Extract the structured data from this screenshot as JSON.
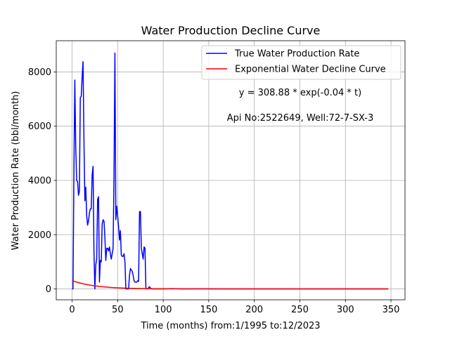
{
  "chart_data": {
    "type": "line",
    "title": "Water Production Decline Curve",
    "xlabel": "Time (months) from:1/1995 to:12/2023",
    "ylabel": "Water Production Rate (bbl/month)",
    "xlim": [
      -17.4,
      365.4
    ],
    "ylim": [
      -400,
      9150
    ],
    "xticks": [
      0,
      50,
      100,
      150,
      200,
      250,
      300,
      350
    ],
    "yticks": [
      0,
      2000,
      4000,
      6000,
      8000
    ],
    "grid": true,
    "legend_position": "upper right",
    "annotations": [
      "y = 308.88 * exp(-0.04 * t)",
      "Api No:2522649, Well:72-7-SX-3"
    ],
    "series": [
      {
        "name": "True Water Production Rate",
        "color": "#0000ff",
        "x": [
          0,
          1,
          2,
          3,
          4,
          5,
          6,
          7,
          8,
          9,
          10,
          11,
          12,
          13,
          14,
          15,
          16,
          17,
          18,
          19,
          20,
          21,
          22,
          23,
          24,
          25,
          26,
          27,
          28,
          29,
          30,
          31,
          32,
          33,
          34,
          35,
          36,
          37,
          38,
          39,
          40,
          41,
          42,
          43,
          44,
          45,
          46,
          47,
          48,
          49,
          50,
          51,
          52,
          53,
          54,
          55,
          56,
          57,
          58,
          59,
          60,
          61,
          62,
          63,
          64,
          65,
          66,
          67,
          68,
          69,
          70,
          71,
          72,
          73,
          74,
          75,
          76,
          77,
          78,
          79,
          80,
          81,
          82,
          83,
          84,
          85,
          86,
          87,
          88,
          89,
          90,
          91,
          95,
          100,
          110,
          120,
          140,
          160,
          180,
          200,
          220,
          240,
          260,
          280,
          300,
          320,
          340,
          347
        ],
        "y": [
          0,
          0,
          4400,
          7700,
          5200,
          4000,
          3950,
          3450,
          3600,
          7050,
          7100,
          7800,
          8380,
          5500,
          3250,
          3750,
          2700,
          2350,
          2500,
          2800,
          2950,
          2950,
          4200,
          4520,
          1350,
          0,
          900,
          1100,
          3300,
          3400,
          250,
          1050,
          1000,
          2400,
          2550,
          2500,
          1900,
          1050,
          1500,
          1500,
          1400,
          1550,
          1300,
          1100,
          1300,
          1500,
          4200,
          8700,
          2550,
          3050,
          2700,
          2300,
          1800,
          2150,
          1250,
          1200,
          1200,
          1300,
          1000,
          0,
          0,
          0,
          0,
          500,
          750,
          700,
          650,
          500,
          300,
          250,
          250,
          250,
          300,
          280,
          2850,
          2850,
          1500,
          1300,
          1100,
          1550,
          1500,
          0,
          0,
          0,
          50,
          80,
          30,
          10,
          0,
          0,
          0,
          0,
          0,
          0,
          10,
          0,
          5,
          0,
          0,
          0,
          0,
          0,
          0,
          0,
          0,
          0,
          0,
          0
        ]
      },
      {
        "name": "Exponential Water Decline Curve",
        "color": "#ff0000",
        "fit": {
          "a": 308.88,
          "b": 0.04,
          "x_start": 0,
          "x_end": 347
        }
      }
    ]
  }
}
